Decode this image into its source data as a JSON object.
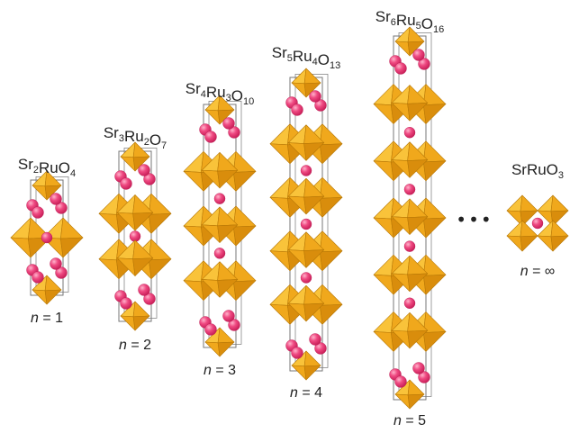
{
  "structures": [
    {
      "formula": [
        [
          "Sr",
          ""
        ],
        [
          "2",
          ""
        ],
        [
          "Ru",
          ""
        ],
        [
          "O",
          ""
        ],
        [
          "4",
          ""
        ]
      ],
      "formula_parts": [
        {
          "t": "Sr"
        },
        {
          "s": "2"
        },
        {
          "t": "RuO"
        },
        {
          "s": "4"
        }
      ],
      "n_var": "n",
      "n_rest": " = 1",
      "layers": 1
    },
    {
      "formula_parts": [
        {
          "t": "Sr"
        },
        {
          "s": "3"
        },
        {
          "t": "Ru"
        },
        {
          "s": "2"
        },
        {
          "t": "O"
        },
        {
          "s": "7"
        }
      ],
      "n_var": "n",
      "n_rest": " = 2",
      "layers": 2
    },
    {
      "formula_parts": [
        {
          "t": "Sr"
        },
        {
          "s": "4"
        },
        {
          "t": "Ru"
        },
        {
          "s": "3"
        },
        {
          "t": "O"
        },
        {
          "s": "10"
        }
      ],
      "n_var": "n",
      "n_rest": " = 3",
      "layers": 3
    },
    {
      "formula_parts": [
        {
          "t": "Sr"
        },
        {
          "s": "5"
        },
        {
          "t": "Ru"
        },
        {
          "s": "4"
        },
        {
          "t": "O"
        },
        {
          "s": "13"
        }
      ],
      "n_var": "n",
      "n_rest": " = 4",
      "layers": 4
    },
    {
      "formula_parts": [
        {
          "t": "Sr"
        },
        {
          "s": "6"
        },
        {
          "t": "Ru"
        },
        {
          "s": "5"
        },
        {
          "t": "O"
        },
        {
          "s": "16"
        }
      ],
      "n_var": "n",
      "n_rest": " = 5",
      "layers": 5
    },
    {
      "formula_parts": [
        {
          "t": "SrRuO"
        },
        {
          "s": "3"
        }
      ],
      "n_var": "n",
      "n_rest": " = ∞",
      "layers": "infinite"
    }
  ],
  "ellipsis": "•••",
  "colors": {
    "octahedron_light": "#f9c33a",
    "octahedron_mid": "#f0a81c",
    "octahedron_dark": "#d98d0c",
    "octahedron_edge": "#b87806",
    "sr_atom": "#ee3f7a",
    "sr_atom_highlight": "#ff9dbd",
    "cell_line": "#777777"
  }
}
